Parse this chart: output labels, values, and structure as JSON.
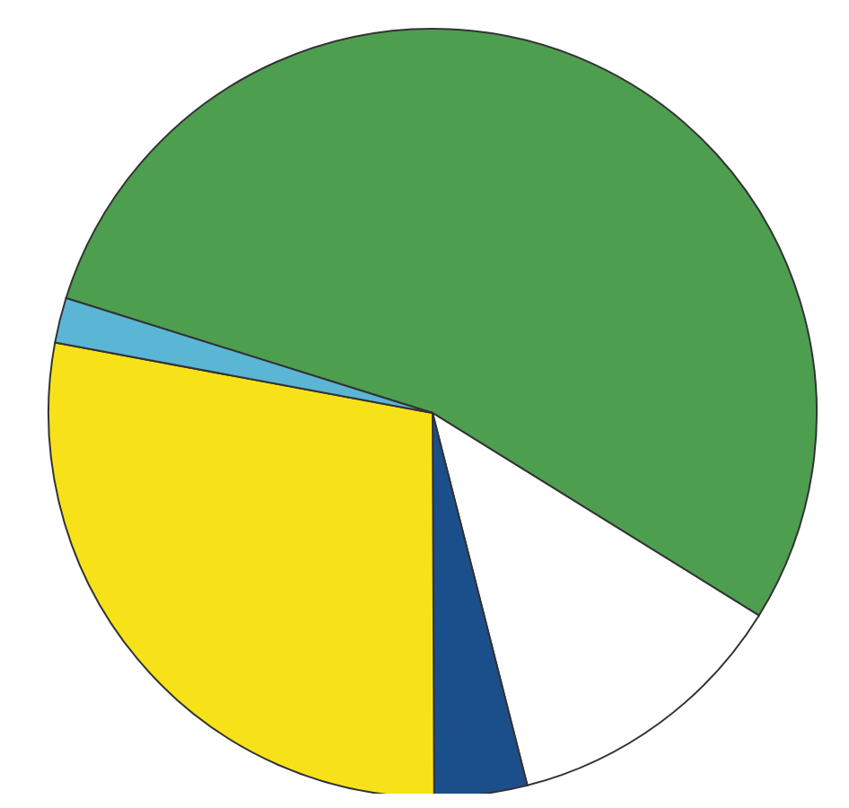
{
  "chart_data": {
    "type": "pie",
    "categories": [
      null,
      null,
      null,
      null,
      null
    ],
    "values": [
      54.0,
      12.2,
      3.9,
      28.0,
      1.9
    ],
    "colors": [
      "#4e9e50",
      "#ffffff",
      "#1b4f8c",
      "#f7e21a",
      "#5bb5d5"
    ],
    "legend": false
  }
}
